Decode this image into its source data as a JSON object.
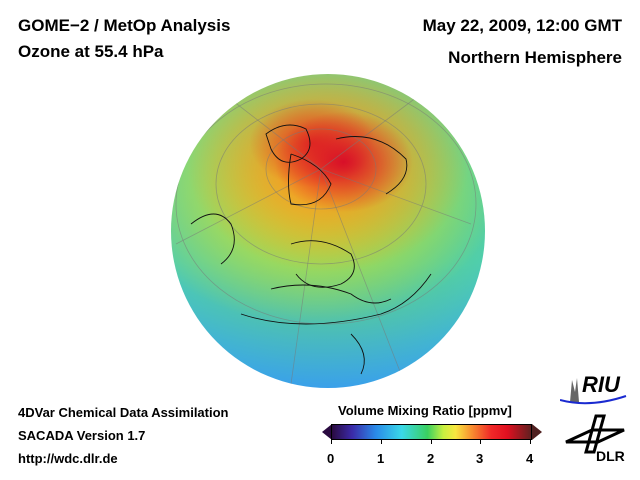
{
  "header": {
    "title_line1": "GOME−2 / MetOp Analysis",
    "title_line2": "Ozone at 55.4 hPa",
    "date": "May 22, 2009, 12:00 GMT",
    "region": "Northern Hemisphere"
  },
  "footer": {
    "line1": "4DVar Chemical Data Assimilation",
    "line2": "SACADA Version 1.7",
    "url": "http://wdc.dlr.de"
  },
  "colorbar": {
    "title": "Volume Mixing Ratio [ppmv]",
    "ticks": [
      "0",
      "1",
      "2",
      "3",
      "4"
    ],
    "min": 0,
    "max": 4
  },
  "logos": {
    "riu": "RIU",
    "dlr": "DLR"
  }
}
